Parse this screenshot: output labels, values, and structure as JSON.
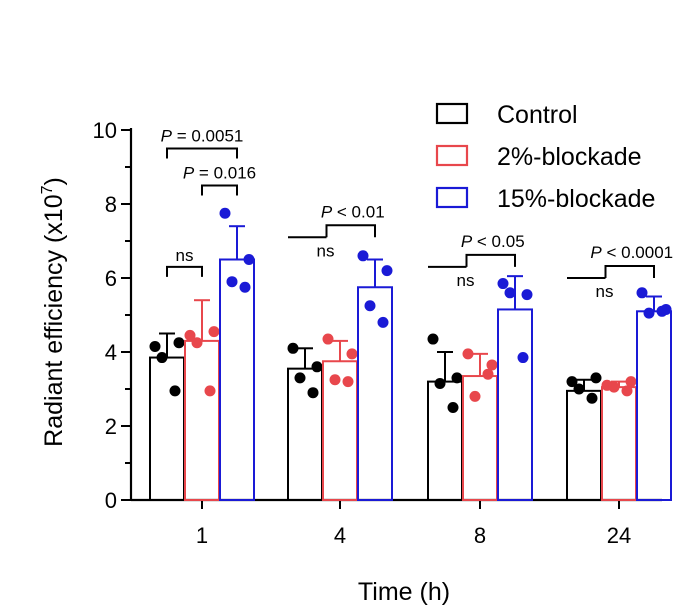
{
  "chart_data": {
    "type": "bar",
    "xlabel": "Time (h)",
    "ylabel": "Radiant efficiency (x10",
    "ylabel_exponent": "7",
    "ylabel_close": ")",
    "ylim": [
      0,
      10
    ],
    "yticks": [
      0,
      2,
      4,
      6,
      8,
      10
    ],
    "categories": [
      "1",
      "4",
      "8",
      "24"
    ],
    "series": [
      {
        "name": "Control",
        "color": "#000000",
        "values": [
          3.85,
          3.55,
          3.2,
          2.95
        ],
        "error": [
          0.65,
          0.55,
          0.8,
          0.3
        ],
        "points": [
          [
            4.15,
            4.25,
            3.85,
            2.95
          ],
          [
            4.1,
            3.6,
            3.3,
            2.9
          ],
          [
            4.35,
            3.3,
            3.15,
            2.5
          ],
          [
            3.2,
            3.3,
            3.0,
            2.75
          ]
        ]
      },
      {
        "name": "2%-blockade",
        "color": "#e8474c",
        "values": [
          4.3,
          3.75,
          3.35,
          3.05
        ],
        "error": [
          1.1,
          0.55,
          0.6,
          0.15
        ],
        "points": [
          [
            4.45,
            4.55,
            4.25,
            2.95
          ],
          [
            4.35,
            3.95,
            3.25,
            3.2
          ],
          [
            3.95,
            3.65,
            2.8,
            3.4
          ],
          [
            3.1,
            3.2,
            3.05,
            2.95
          ]
        ]
      },
      {
        "name": "15%-blockade",
        "color": "#1a1ad6",
        "values": [
          6.5,
          5.75,
          5.15,
          5.1
        ],
        "error": [
          0.9,
          0.75,
          0.9,
          0.4
        ],
        "points": [
          [
            7.75,
            6.5,
            5.9,
            5.75
          ],
          [
            6.6,
            6.2,
            5.25,
            4.8
          ],
          [
            5.85,
            5.55,
            5.6,
            3.85
          ],
          [
            5.6,
            5.15,
            5.05,
            5.1
          ]
        ]
      }
    ],
    "legend_position": "top-right",
    "annotations": [
      {
        "group": "1",
        "kind": "pair",
        "from": 0,
        "to": 1,
        "y": 6.3,
        "label": "ns"
      },
      {
        "group": "1",
        "kind": "pair",
        "from": 1,
        "to": 2,
        "y": 8.5,
        "prefix": "P",
        "value": " = 0.016"
      },
      {
        "group": "1",
        "kind": "pair",
        "from": 0,
        "to": 2,
        "y": 9.5,
        "prefix": "P",
        "value": " = 0.0051"
      },
      {
        "group": "4",
        "kind": "stepped",
        "y": 7.1,
        "label": "ns",
        "prefix": "P",
        "value": " < 0.01"
      },
      {
        "group": "8",
        "kind": "stepped",
        "y": 6.3,
        "label": "ns",
        "prefix": "P",
        "value": " < 0.05"
      },
      {
        "group": "24",
        "kind": "stepped",
        "y": 6.0,
        "label": "ns",
        "prefix": "P",
        "value": " < 0.0001"
      }
    ]
  }
}
